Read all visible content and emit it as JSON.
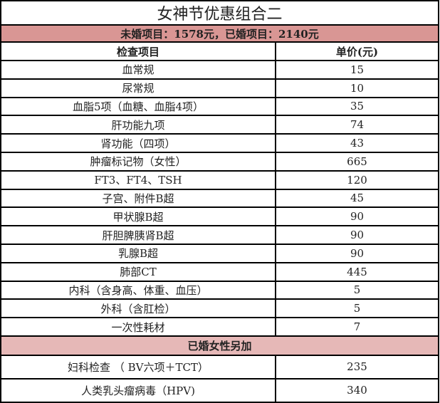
{
  "title": "女神节优惠组合二",
  "summary": "未婚项目：1578元，已婚项目：2140元",
  "colors": {
    "summary_bg": "#d99694",
    "section_bg": "#e6b8b7"
  },
  "headers": {
    "item": "检查项目",
    "price": "单价(元)"
  },
  "items": [
    {
      "name": "血常规",
      "price": "15"
    },
    {
      "name": "尿常规",
      "price": "10"
    },
    {
      "name": "血脂5项（血糖、血脂4项）",
      "price": "35"
    },
    {
      "name": "肝功能九项",
      "price": "74"
    },
    {
      "name": "肾功能（四项）",
      "price": "43"
    },
    {
      "name": "肿瘤标记物（女性）",
      "price": "665"
    },
    {
      "name": "FT3、FT4、TSH",
      "price": "120"
    },
    {
      "name": "子宫、附件B超",
      "price": "45"
    },
    {
      "name": "甲状腺B超",
      "price": "90"
    },
    {
      "name": "肝胆脾胰肾B超",
      "price": "90"
    },
    {
      "name": "乳腺B超",
      "price": "90"
    },
    {
      "name": "肺部CT",
      "price": "445"
    },
    {
      "name": "内科（含身高、体重、血压）",
      "price": "5"
    },
    {
      "name": "外科（含肛检）",
      "price": "5"
    },
    {
      "name": "一次性耗材",
      "price": "7"
    }
  ],
  "married_section": "已婚女性另加",
  "married_items": [
    {
      "name": "妇科检查  （ BV六项＋TCT）",
      "price": "235"
    },
    {
      "name": "人类乳头瘤病毒（HPV)",
      "price": "340"
    }
  ]
}
